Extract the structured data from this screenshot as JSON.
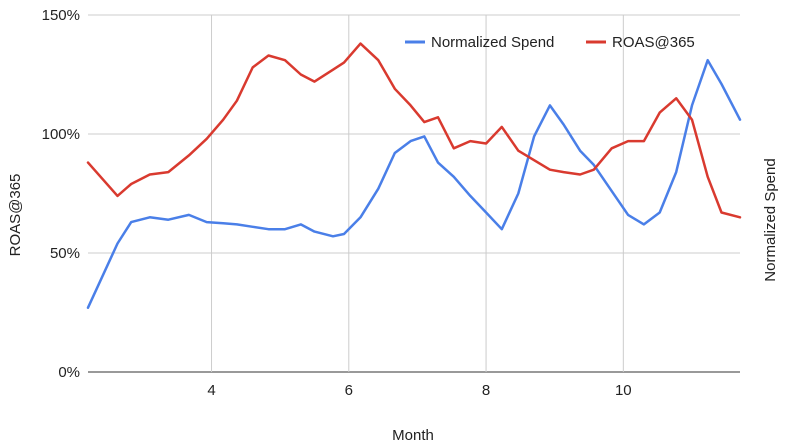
{
  "chart_data": {
    "type": "line",
    "title": "",
    "xlabel": "Month",
    "ylabel_left": "ROAS@365",
    "ylabel_right": "Normalized Spend",
    "xlim": [
      2.2,
      11.7
    ],
    "ylim": [
      0,
      150
    ],
    "x_ticks": [
      4,
      6,
      8,
      10
    ],
    "x_tick_labels": [
      "4",
      "6",
      "8",
      "10"
    ],
    "y_ticks": [
      0,
      50,
      100,
      150
    ],
    "y_tick_labels": [
      "0%",
      "50%",
      "100%",
      "150%"
    ],
    "grid": true,
    "legend_position": "top-right",
    "x": [
      2.2,
      2.63,
      2.83,
      3.1,
      3.37,
      3.67,
      3.93,
      4.17,
      4.37,
      4.6,
      4.83,
      5.07,
      5.3,
      5.5,
      5.77,
      5.93,
      6.17,
      6.43,
      6.67,
      6.9,
      7.1,
      7.3,
      7.53,
      7.77,
      8.0,
      8.23,
      8.47,
      8.7,
      8.93,
      9.13,
      9.37,
      9.57,
      9.83,
      10.07,
      10.3,
      10.53,
      10.77,
      11.0,
      11.23,
      11.43,
      11.7
    ],
    "series": [
      {
        "name": "Normalized Spend",
        "color": "#4a7fe8",
        "values": [
          27,
          54,
          63,
          65,
          64,
          66,
          63,
          62.5,
          62,
          61,
          60,
          60,
          62,
          59,
          57,
          58,
          65,
          77,
          92,
          97,
          99,
          88,
          82,
          74,
          67,
          60,
          75,
          99,
          112,
          104,
          93,
          87,
          76,
          66,
          62,
          67,
          84,
          112,
          131,
          121,
          106
        ]
      },
      {
        "name": "ROAS@365",
        "color": "#d93a2f",
        "values": [
          88,
          74,
          79,
          83,
          84,
          91,
          98,
          106,
          114,
          128,
          133,
          131,
          125,
          122,
          127,
          130,
          138,
          131,
          119,
          112,
          105,
          107,
          94,
          97,
          96,
          103,
          93,
          89,
          85,
          84,
          83,
          85,
          94,
          97,
          97,
          109,
          115,
          106,
          82,
          67,
          65
        ]
      }
    ]
  }
}
